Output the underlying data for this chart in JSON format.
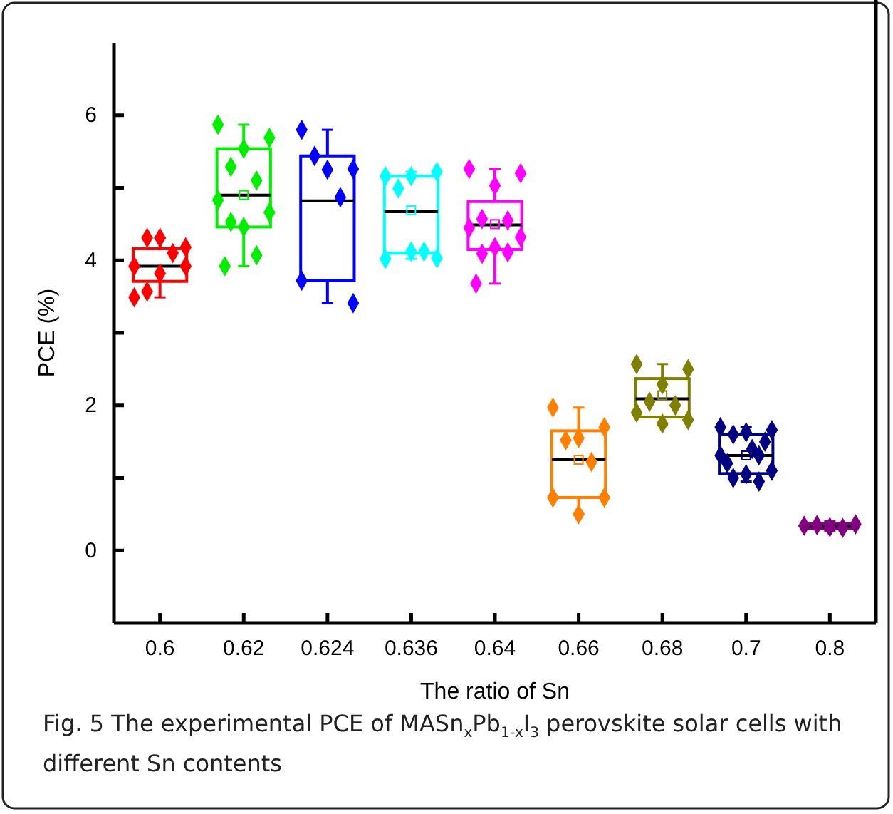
{
  "chart_data": {
    "type": "box",
    "categories": [
      "0.6",
      "0.62",
      "0.624",
      "0.636",
      "0.64",
      "0.66",
      "0.68",
      "0.7",
      "0.8"
    ],
    "colors": [
      "#ff0000",
      "#00ee00",
      "#0000ff",
      "#00ffff",
      "#ff00ff",
      "#ff8000",
      "#808000",
      "#000080",
      "#800080"
    ],
    "boxes": [
      {
        "low": 3.49,
        "q1": 3.71,
        "median": 3.92,
        "q3": 4.16,
        "high": 4.31
      },
      {
        "low": 3.92,
        "q1": 4.46,
        "median": 4.9,
        "q3": 5.54,
        "high": 5.87,
        "mean": 4.9
      },
      {
        "low": 3.41,
        "q1": 3.72,
        "median": 4.82,
        "q3": 5.44,
        "high": 5.8
      },
      {
        "low": 4.02,
        "q1": 4.1,
        "median": 4.67,
        "q3": 5.16,
        "high": 5.22,
        "mean": 4.69
      },
      {
        "low": 3.68,
        "q1": 4.15,
        "median": 4.49,
        "q3": 4.81,
        "high": 5.26,
        "mean": 4.5
      },
      {
        "low": 0.5,
        "q1": 0.73,
        "median": 1.25,
        "q3": 1.65,
        "high": 1.97,
        "mean": 1.25
      },
      {
        "low": 1.73,
        "q1": 1.84,
        "median": 2.09,
        "q3": 2.37,
        "high": 2.57,
        "mean": 2.14
      },
      {
        "low": 0.95,
        "q1": 1.06,
        "median": 1.31,
        "q3": 1.6,
        "high": 1.7,
        "mean": 1.31
      },
      {
        "low": 0.27,
        "q1": 0.3,
        "median": 0.33,
        "q3": 0.37,
        "high": 0.4
      }
    ],
    "series": [
      {
        "type": "scatter",
        "color": "#ff0000",
        "x": [
          "0.6",
          "0.6",
          "0.6",
          "0.6",
          "0.6",
          "0.6",
          "0.6",
          "0.6",
          "0.6"
        ],
        "values": [
          3.49,
          4.18,
          4.31,
          4.31,
          4.1,
          3.92,
          3.92,
          3.82,
          3.57
        ]
      },
      {
        "type": "scatter",
        "color": "#00ee00",
        "x": [
          "0.62",
          "0.62",
          "0.62",
          "0.62",
          "0.62",
          "0.62",
          "0.62",
          "0.62",
          "0.62",
          "0.62",
          "0.62"
        ],
        "values": [
          5.87,
          5.69,
          5.54,
          5.29,
          5.1,
          4.83,
          4.66,
          4.46,
          4.53,
          4.07,
          3.92
        ]
      },
      {
        "type": "scatter",
        "color": "#0000ff",
        "x": [
          "0.624",
          "0.624",
          "0.624",
          "0.624",
          "0.624",
          "0.624",
          "0.624"
        ],
        "values": [
          5.8,
          5.26,
          5.25,
          5.44,
          4.87,
          3.72,
          3.41
        ]
      },
      {
        "type": "scatter",
        "color": "#00ffff",
        "x": [
          "0.636",
          "0.636",
          "0.636",
          "0.636",
          "0.636",
          "0.636",
          "0.636",
          "0.636"
        ],
        "values": [
          5.16,
          5.22,
          5.16,
          4.99,
          4.12,
          4.02,
          4.03,
          4.12
        ]
      },
      {
        "type": "scatter",
        "color": "#ff00ff",
        "x": [
          "0.64",
          "0.64",
          "0.64",
          "0.64",
          "0.64",
          "0.64",
          "0.64",
          "0.64",
          "0.64",
          "0.64",
          "0.64"
        ],
        "values": [
          5.26,
          5.2,
          5.03,
          4.57,
          4.55,
          4.45,
          4.32,
          4.18,
          4.09,
          4.11,
          3.68
        ]
      },
      {
        "type": "scatter",
        "color": "#ff8000",
        "x": [
          "0.66",
          "0.66",
          "0.66",
          "0.66",
          "0.66",
          "0.66",
          "0.66",
          "0.66"
        ],
        "values": [
          1.97,
          1.7,
          1.55,
          1.52,
          1.22,
          0.73,
          0.73,
          0.5
        ]
      },
      {
        "type": "scatter",
        "color": "#808000",
        "x": [
          "0.68",
          "0.68",
          "0.68",
          "0.68",
          "0.68",
          "0.68",
          "0.68",
          "0.68"
        ],
        "values": [
          2.57,
          2.5,
          2.29,
          2.05,
          2.0,
          1.9,
          1.8,
          1.75
        ]
      },
      {
        "type": "scatter",
        "color": "#000080",
        "x": [
          "0.7",
          "0.7",
          "0.7",
          "0.7",
          "0.7",
          "0.7",
          "0.7",
          "0.7",
          "0.7",
          "0.7",
          "0.7",
          "0.7",
          "0.7"
        ],
        "values": [
          1.7,
          1.66,
          1.63,
          1.6,
          1.31,
          1.31,
          1.1,
          1.05,
          1.0,
          0.95,
          1.2,
          1.5,
          1.4
        ]
      },
      {
        "type": "scatter",
        "color": "#800080",
        "x": [
          "0.8",
          "0.8",
          "0.8",
          "0.8",
          "0.8"
        ],
        "values": [
          0.34,
          0.36,
          0.32,
          0.35,
          0.31
        ]
      }
    ],
    "marker": "diamond",
    "xlabel": "The ratio of Sn",
    "ylabel": "PCE (%)",
    "ylim": [
      -1,
      7
    ],
    "yticks": [
      0,
      {
        "value": 1,
        "label": null
      },
      2,
      {
        "value": 3,
        "label": null
      },
      4,
      {
        "value": 5,
        "label": null
      },
      6
    ],
    "grid": false,
    "annotations": [
      "Fig. 5 The experimental PCE of MASn$_{x}$Pb$_{1-x}$I$_{3}$ perovskite solar cells with different Sn contents"
    ]
  }
}
